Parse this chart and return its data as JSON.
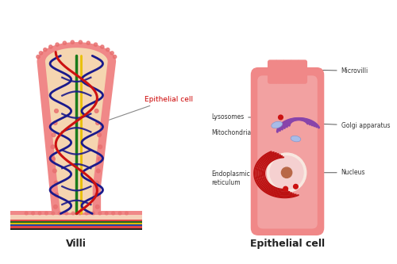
{
  "bg_color": "#ffffff",
  "title_villi": "Villi",
  "title_cell": "Epithelial cell",
  "label_epithelial": "Epithelial cell",
  "label_lysosomes": "Lysosomes",
  "label_mitochondria": "Mitochondria",
  "label_endoplasmic": "Endoplasmic\nreticulum",
  "label_microvilli": "Microvilli",
  "label_golgi": "Golgi apparatus",
  "label_nucleus": "Nucleus",
  "color_outer_villi": "#f08888",
  "color_inner_villi": "#f5d5b0",
  "color_dots": "#e87070",
  "color_dark_red_line": "#cc1111",
  "color_dark_blue_line": "#1a1a8c",
  "color_green_line": "#1a7a1a",
  "color_yellow_line": "#e8c000",
  "color_cell_body": "#f08888",
  "color_cell_light": "#f5c0c0",
  "color_nucleus_outer": "#f5d0d0",
  "color_nucleus_glow": "#f8e8e0",
  "color_nucleus_inner": "#b86848",
  "color_golgi": "#8844aa",
  "color_mitochondria_fill": "#a8bce8",
  "color_mitochondria_edge": "#8898cc",
  "color_er": "#bb1111",
  "color_lysosome_dot": "#cc1111",
  "color_base_pink": "#f08888",
  "color_layer_red": "#dd4444",
  "color_layer_green": "#226622",
  "color_layer_yellow": "#ddbb00",
  "color_layer_blue": "#2244aa",
  "color_layer_tan": "#c8a878",
  "color_layer_dark": "#222222",
  "color_base_top": "#f5d0b8"
}
